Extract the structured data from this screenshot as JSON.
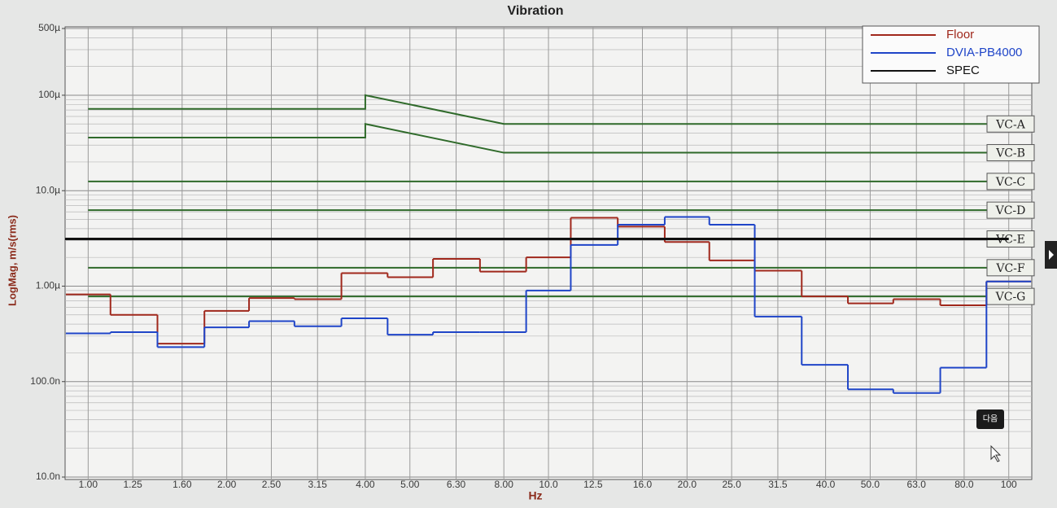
{
  "chart_data": {
    "type": "line",
    "title": "Vibration",
    "x_label": "Hz",
    "y_label": "LogMag, m/s(rms)",
    "xscale": "log",
    "yscale": "log",
    "grid": true,
    "legend": "upper right",
    "x": [
      1,
      1.25,
      1.6,
      2,
      2.5,
      3.15,
      4,
      5,
      6.3,
      8,
      10,
      12.5,
      16,
      20,
      25,
      31.5,
      40,
      50,
      63,
      80,
      100
    ],
    "xlim": [
      0.891,
      112.2
    ],
    "xticks": [
      {
        "value": 1,
        "label": "1.00"
      },
      1.25,
      {
        "value": 1.6,
        "label": "1.60"
      },
      {
        "value": 2,
        "label": "2.00"
      },
      {
        "value": 2.5,
        "label": "2.50"
      },
      3.15,
      {
        "value": 4,
        "label": "4.00"
      },
      {
        "value": 5,
        "label": "5.00"
      },
      {
        "value": 6.3,
        "label": "6.30"
      },
      {
        "value": 8,
        "label": "8.00"
      },
      {
        "value": 10,
        "label": "10.0"
      },
      12.5,
      {
        "value": 16,
        "label": "16.0"
      },
      {
        "value": 20,
        "label": "20.0"
      },
      {
        "value": 25,
        "label": "25.0"
      },
      31.5,
      {
        "value": 40,
        "label": "40.0"
      },
      {
        "value": 50,
        "label": "50.0"
      },
      {
        "value": 63,
        "label": "63.0"
      },
      {
        "value": 80,
        "label": "80.0"
      },
      100
    ],
    "ylim": [
      1e-08,
      0.0005
    ],
    "yticks": [
      {
        "value": 1e-08,
        "label": "10.0n"
      },
      {
        "value": 1e-07,
        "label": "100.0n"
      },
      {
        "value": 1e-06,
        "label": "1.00µ"
      },
      {
        "value": 1e-05,
        "label": "10.0µ"
      },
      {
        "value": 0.0001,
        "label": "100µ"
      },
      {
        "value": 0.0005,
        "label": "500µ"
      }
    ],
    "yminorticks": [
      2e-08,
      3e-08,
      4e-08,
      5e-08,
      6e-08,
      7e-08,
      8e-08,
      9e-08,
      2e-07,
      3e-07,
      4e-07,
      5e-07,
      6e-07,
      7e-07,
      8e-07,
      9e-07,
      2e-06,
      3e-06,
      4e-06,
      5e-06,
      6e-06,
      7e-06,
      8e-06,
      9e-06,
      2e-05,
      3e-05,
      4e-05,
      5e-05,
      6e-05,
      7e-05,
      8e-05,
      9e-05,
      0.0002,
      0.0003,
      0.0004
    ],
    "series": [
      {
        "name": "Floor",
        "color": "#a0281c",
        "drawstyle": "steps",
        "values": [
          8.2e-07,
          5e-07,
          2.5e-07,
          5.5e-07,
          7.5e-07,
          7.3e-07,
          1.37e-06,
          1.24e-06,
          1.93e-06,
          1.42e-06,
          2e-06,
          5.2e-06,
          4.2e-06,
          2.9e-06,
          1.86e-06,
          1.45e-06,
          7.8e-07,
          6.6e-07,
          7.3e-07,
          6.3e-07,
          1.12e-06
        ]
      },
      {
        "name": "DVIA-PB4000",
        "color": "#1f45c8",
        "drawstyle": "steps",
        "values": [
          3.2e-07,
          3.3e-07,
          2.3e-07,
          3.7e-07,
          4.3e-07,
          3.8e-07,
          4.6e-07,
          3.1e-07,
          3.3e-07,
          3.3e-07,
          9e-07,
          2.7e-06,
          4.4e-06,
          5.3e-06,
          4.4e-06,
          4.8e-07,
          1.5e-07,
          8.3e-08,
          7.6e-08,
          1.4e-07,
          1.12e-06
        ]
      },
      {
        "name": "SPEC",
        "color": "#111111",
        "drawstyle": "line",
        "x": [
          0.891,
          100
        ],
        "values": [
          3.12e-06,
          3.12e-06
        ]
      }
    ],
    "reference_color": "#2f6a2a",
    "reference_lines": [
      {
        "name": "VC-A",
        "x": [
          1,
          4,
          4,
          8,
          100
        ],
        "values": [
          7.2e-05,
          7.2e-05,
          0.0001,
          5e-05,
          5e-05
        ]
      },
      {
        "name": "VC-B",
        "x": [
          1,
          4,
          4,
          8,
          100
        ],
        "values": [
          3.6e-05,
          3.6e-05,
          5e-05,
          2.5e-05,
          2.5e-05
        ]
      },
      {
        "name": "VC-C",
        "x": [
          1,
          100
        ],
        "values": [
          1.25e-05,
          1.25e-05
        ]
      },
      {
        "name": "VC-D",
        "x": [
          1,
          100
        ],
        "values": [
          6.25e-06,
          6.25e-06
        ]
      },
      {
        "name": "VC-E",
        "x": [
          1,
          100
        ],
        "values": [
          3.12e-06,
          3.12e-06
        ]
      },
      {
        "name": "VC-F",
        "x": [
          1,
          100
        ],
        "values": [
          1.56e-06,
          1.56e-06
        ]
      },
      {
        "name": "VC-G",
        "x": [
          1,
          100
        ],
        "values": [
          7.8e-07,
          7.8e-07
        ]
      }
    ]
  },
  "overlay_button": "다음"
}
